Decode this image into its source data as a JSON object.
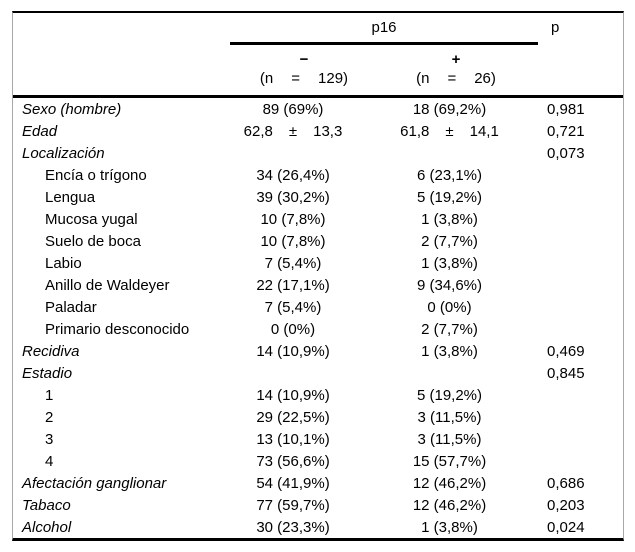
{
  "page": {
    "background": "#ffffff",
    "text_color": "#000000"
  },
  "table": {
    "header": {
      "group_label": "p16",
      "p_label": "p",
      "neg": {
        "sign": "−",
        "n_prefix": "(n",
        "eq": "=",
        "n_value": "129)"
      },
      "pos": {
        "sign": "+",
        "n_prefix": "(n",
        "eq": "=",
        "n_value": "26)"
      }
    },
    "rows": [
      {
        "label": "Sexo (hombre)",
        "italic": true,
        "indent": false,
        "neg": "89 (69%)",
        "pos": "18 (69,2%)",
        "p": "0,981"
      },
      {
        "label": "Edad",
        "italic": true,
        "indent": false,
        "neg": {
          "mean": "62,8",
          "pm": "±",
          "sd": "13,3"
        },
        "pos": {
          "mean": "61,8",
          "pm": "±",
          "sd": "14,1"
        },
        "p": "0,721"
      },
      {
        "label": "Localización",
        "italic": true,
        "indent": false,
        "neg": "",
        "pos": "",
        "p": "0,073"
      },
      {
        "label": "Encía o trígono",
        "italic": false,
        "indent": true,
        "neg": "34 (26,4%)",
        "pos": "6 (23,1%)",
        "p": ""
      },
      {
        "label": "Lengua",
        "italic": false,
        "indent": true,
        "neg": "39 (30,2%)",
        "pos": "5 (19,2%)",
        "p": ""
      },
      {
        "label": "Mucosa yugal",
        "italic": false,
        "indent": true,
        "neg": "10 (7,8%)",
        "pos": "1 (3,8%)",
        "p": ""
      },
      {
        "label": "Suelo de boca",
        "italic": false,
        "indent": true,
        "neg": "10 (7,8%)",
        "pos": "2 (7,7%)",
        "p": ""
      },
      {
        "label": "Labio",
        "italic": false,
        "indent": true,
        "neg": "7 (5,4%)",
        "pos": "1 (3,8%)",
        "p": ""
      },
      {
        "label": "Anillo de Waldeyer",
        "italic": false,
        "indent": true,
        "neg": "22 (17,1%)",
        "pos": "9 (34,6%)",
        "p": ""
      },
      {
        "label": "Paladar",
        "italic": false,
        "indent": true,
        "neg": "7 (5,4%)",
        "pos": "0 (0%)",
        "p": ""
      },
      {
        "label": "Primario desconocido",
        "italic": false,
        "indent": true,
        "neg": "0 (0%)",
        "pos": "2 (7,7%)",
        "p": ""
      },
      {
        "label": "Recidiva",
        "italic": true,
        "indent": false,
        "neg": "14 (10,9%)",
        "pos": "1 (3,8%)",
        "p": "0,469"
      },
      {
        "label": "Estadio",
        "italic": true,
        "indent": false,
        "neg": "",
        "pos": "",
        "p": "0,845"
      },
      {
        "label": "1",
        "italic": false,
        "indent": true,
        "neg": "14 (10,9%)",
        "pos": "5 (19,2%)",
        "p": ""
      },
      {
        "label": "2",
        "italic": false,
        "indent": true,
        "neg": "29 (22,5%)",
        "pos": "3 (11,5%)",
        "p": ""
      },
      {
        "label": "3",
        "italic": false,
        "indent": true,
        "neg": "13 (10,1%)",
        "pos": "3 (11,5%)",
        "p": ""
      },
      {
        "label": "4",
        "italic": false,
        "indent": true,
        "neg": "73 (56,6%)",
        "pos": "15 (57,7%)",
        "p": ""
      },
      {
        "label": "Afectación ganglionar",
        "italic": true,
        "indent": false,
        "neg": "54 (41,9%)",
        "pos": "12 (46,2%)",
        "p": "0,686"
      },
      {
        "label": "Tabaco",
        "italic": true,
        "indent": false,
        "neg": "77 (59,7%)",
        "pos": "12 (46,2%)",
        "p": "0,203"
      },
      {
        "label": "Alcohol",
        "italic": true,
        "indent": false,
        "neg": "30 (23,3%)",
        "pos": "1 (3,8%)",
        "p": "0,024"
      }
    ]
  }
}
